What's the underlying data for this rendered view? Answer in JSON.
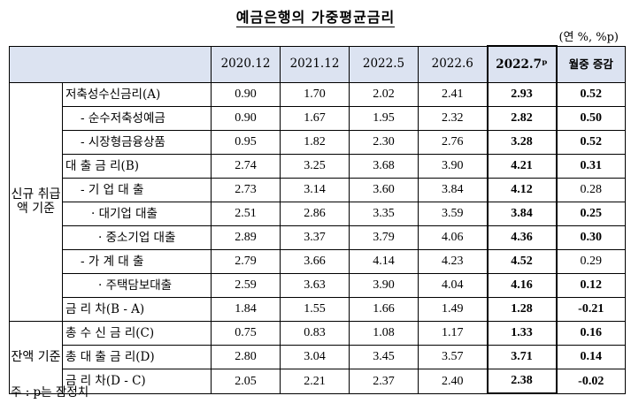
{
  "title": "예금은행의 가중평균금리",
  "unit": "(연 %, %p)",
  "columns": [
    "2020.12",
    "2021.12",
    "2022.5",
    "2022.6",
    "2022.7ᵖ",
    "월중 증감"
  ],
  "groups": [
    {
      "label": "신규 취급액 기준"
    },
    {
      "label": "잔액 기준"
    }
  ],
  "rows": [
    {
      "label": "저축성수신금리(A)",
      "values": [
        "0.90",
        "1.70",
        "2.02",
        "2.41",
        "2.93",
        "0.52"
      ]
    },
    {
      "label": "- 순수저축성예금",
      "values": [
        "0.90",
        "1.67",
        "1.95",
        "2.32",
        "2.82",
        "0.50"
      ]
    },
    {
      "label": "- 시장형금융상품",
      "values": [
        "0.95",
        "1.82",
        "2.30",
        "2.76",
        "3.28",
        "0.52"
      ]
    },
    {
      "label": "대 출 금 리(B)",
      "values": [
        "2.74",
        "3.25",
        "3.68",
        "3.90",
        "4.21",
        "0.31"
      ]
    },
    {
      "label": "- 기 업 대 출",
      "values": [
        "2.73",
        "3.14",
        "3.60",
        "3.84",
        "4.12",
        "0.28"
      ]
    },
    {
      "label": "· 대기업 대출",
      "values": [
        "2.51",
        "2.86",
        "3.35",
        "3.59",
        "3.84",
        "0.25"
      ]
    },
    {
      "label": "· 중소기업 대출",
      "values": [
        "2.89",
        "3.37",
        "3.79",
        "4.06",
        "4.36",
        "0.30"
      ]
    },
    {
      "label": "- 가 계 대 출",
      "values": [
        "2.79",
        "3.66",
        "4.14",
        "4.23",
        "4.52",
        "0.29"
      ]
    },
    {
      "label": "· 주택담보대출",
      "values": [
        "2.59",
        "3.63",
        "3.90",
        "4.04",
        "4.16",
        "0.12"
      ]
    },
    {
      "label": "금 리 차(B - A)",
      "values": [
        "1.84",
        "1.55",
        "1.66",
        "1.49",
        "1.28",
        "-0.21"
      ]
    },
    {
      "label": "총 수 신 금 리(C)",
      "values": [
        "0.75",
        "0.83",
        "1.08",
        "1.17",
        "1.33",
        "0.16"
      ]
    },
    {
      "label": "총 대 출 금 리(D)",
      "values": [
        "2.80",
        "3.04",
        "3.45",
        "3.57",
        "3.71",
        "0.14"
      ]
    },
    {
      "label": "금 리 차(D - C)",
      "values": [
        "2.05",
        "2.21",
        "2.37",
        "2.40",
        "2.38",
        "-0.02"
      ]
    }
  ],
  "note": "주 : p는 잠정치"
}
